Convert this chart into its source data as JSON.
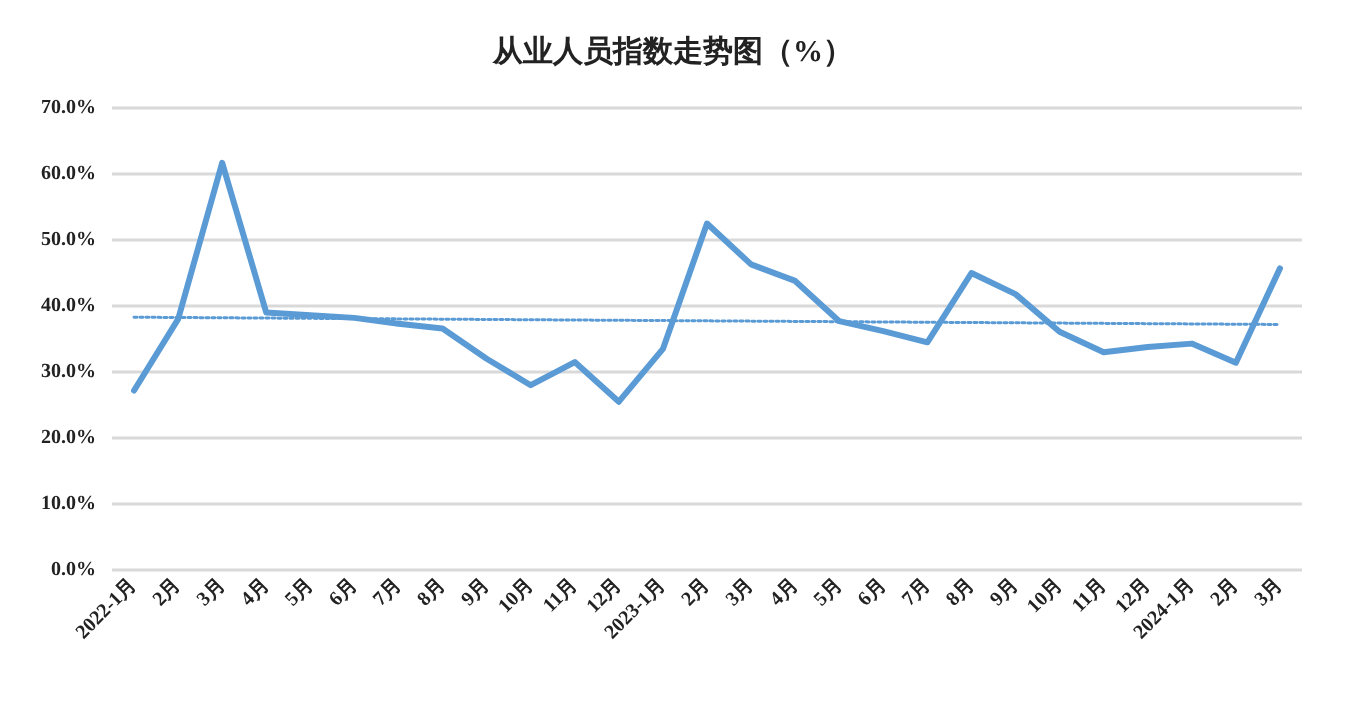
{
  "chart_data": {
    "type": "line",
    "title": "从业人员指数走势图（%）",
    "categories": [
      "2022-1月",
      "2月",
      "3月",
      "4月",
      "5月",
      "6月",
      "7月",
      "8月",
      "9月",
      "10月",
      "11月",
      "12月",
      "2023-1月",
      "2月",
      "3月",
      "4月",
      "5月",
      "6月",
      "7月",
      "8月",
      "9月",
      "10月",
      "11月",
      "12月",
      "2024-1月",
      "2月",
      "3月"
    ],
    "series": [
      {
        "color": "#5b9bd5",
        "values": [
          27.2,
          38,
          61.7,
          39,
          38.6,
          38.2,
          37.3,
          36.6,
          32,
          28,
          31.5,
          25.5,
          33.5,
          52.5,
          46.3,
          43.8,
          37.7,
          36.2,
          34.5,
          45,
          41.8,
          36.1,
          33,
          33.8,
          34.3,
          31.4,
          45.7
        ]
      },
      {
        "color": "#5b9bd5",
        "line_style": "dotted",
        "values": [
          38.3,
          null,
          null,
          null,
          null,
          null,
          null,
          null,
          null,
          null,
          null,
          null,
          null,
          null,
          null,
          null,
          null,
          null,
          null,
          null,
          null,
          null,
          null,
          null,
          null,
          null,
          37.2
        ]
      }
    ],
    "ylim": [
      0,
      70
    ],
    "yticks": [
      {
        "value": 0,
        "label": "0.0%"
      },
      {
        "value": 10,
        "label": "10.0%"
      },
      {
        "value": 20,
        "label": "20.0%"
      },
      {
        "value": 30,
        "label": "30.0%"
      },
      {
        "value": 40,
        "label": "40.0%"
      },
      {
        "value": 50,
        "label": "50.0%"
      },
      {
        "value": 60,
        "label": "60.0%"
      },
      {
        "value": 70,
        "label": "70.0%"
      }
    ],
    "grid": "y",
    "marker": "none"
  }
}
